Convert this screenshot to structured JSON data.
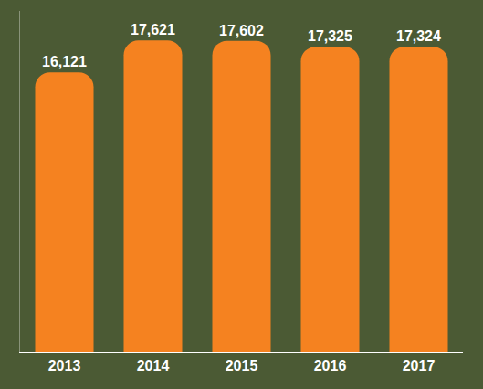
{
  "chart_data": {
    "type": "bar",
    "categories": [
      "2013",
      "2014",
      "2015",
      "2016",
      "2017"
    ],
    "values": [
      16121,
      17621,
      17602,
      17325,
      17324
    ],
    "value_labels": [
      "16,121",
      "17,621",
      "17,602",
      "17,325",
      "17,324"
    ],
    "color": "#f58220",
    "ylim": [
      3000,
      19000
    ],
    "data_labels": true,
    "tick_labels": "x",
    "grid": false
  }
}
